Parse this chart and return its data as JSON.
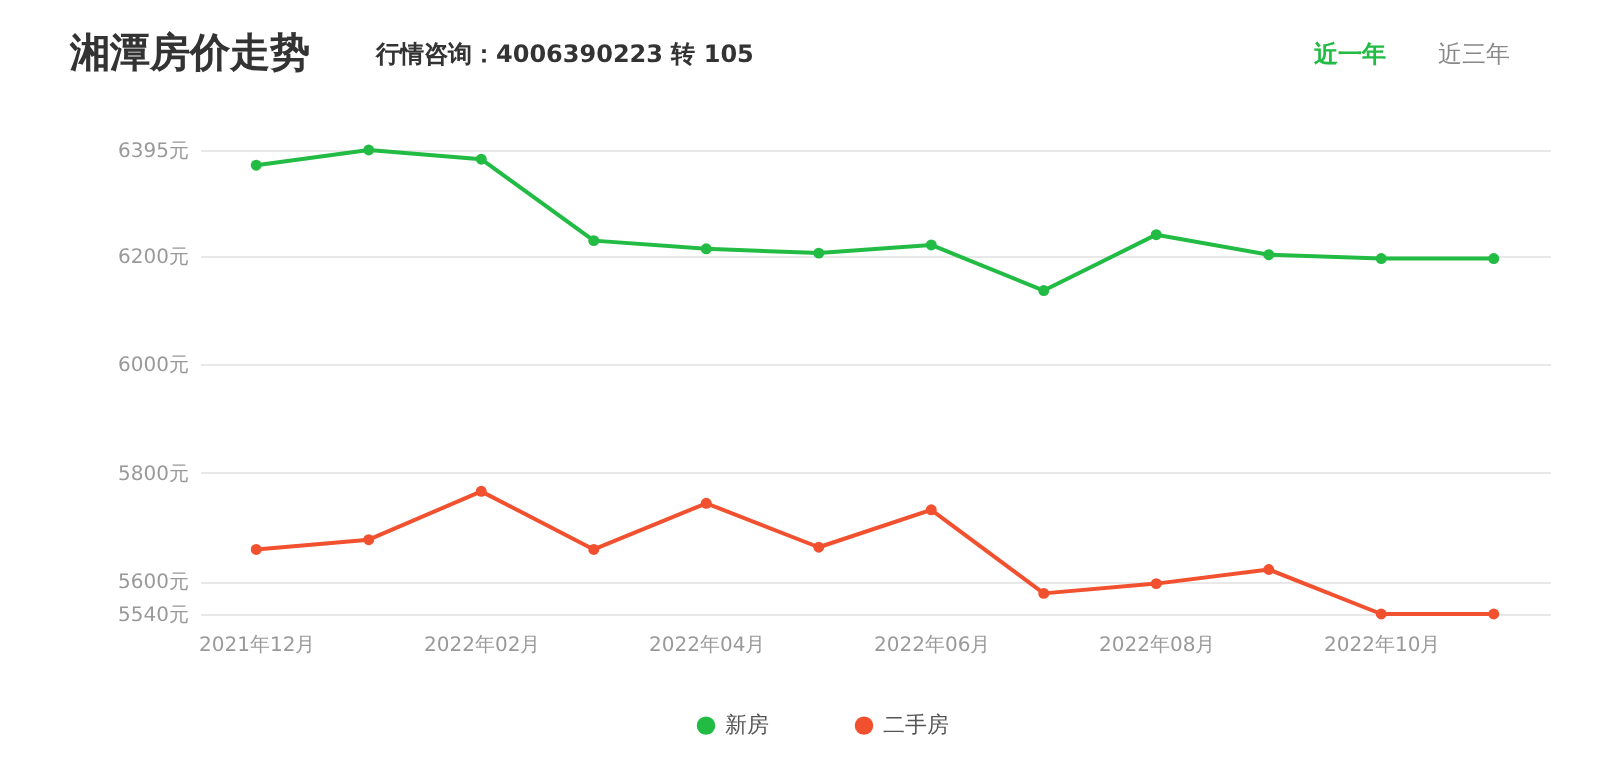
{
  "chart_data": {
    "type": "line",
    "title": "湘潭房价走势",
    "subtitle": "行情咨询：4006390223 转 105",
    "annotations": [
      "近一年",
      "近三年"
    ],
    "categories": [
      "2021年12月",
      null,
      "2022年02月",
      null,
      "2022年04月",
      null,
      "2022年06月",
      null,
      "2022年08月",
      null,
      "2022年10月",
      null
    ],
    "series": [
      {
        "name": "新房",
        "color": "#22bb44",
        "values": [
          6367,
          6395,
          6378,
          6228,
          6213,
          6205,
          6220,
          6136,
          6239,
          6202,
          6195,
          6195
        ]
      },
      {
        "name": "二手房",
        "color": "#f2512f",
        "values": [
          5659,
          5677,
          5766,
          5659,
          5744,
          5663,
          5732,
          5578,
          5596,
          5622,
          5540,
          5540
        ]
      }
    ],
    "ylim": [
      5540,
      6395
    ],
    "yticks": [
      {
        "value": 5540,
        "label": "5540元"
      },
      {
        "value": 5600,
        "label": "5600元"
      },
      {
        "value": 5800,
        "label": "5800元"
      },
      {
        "value": 6000,
        "label": "6000元"
      },
      {
        "value": 6200,
        "label": "6200元"
      },
      {
        "value": 6395,
        "label": "6395元"
      }
    ],
    "grid": "y",
    "legend": "bottom",
    "marker": "circle",
    "line_style": "solid"
  }
}
